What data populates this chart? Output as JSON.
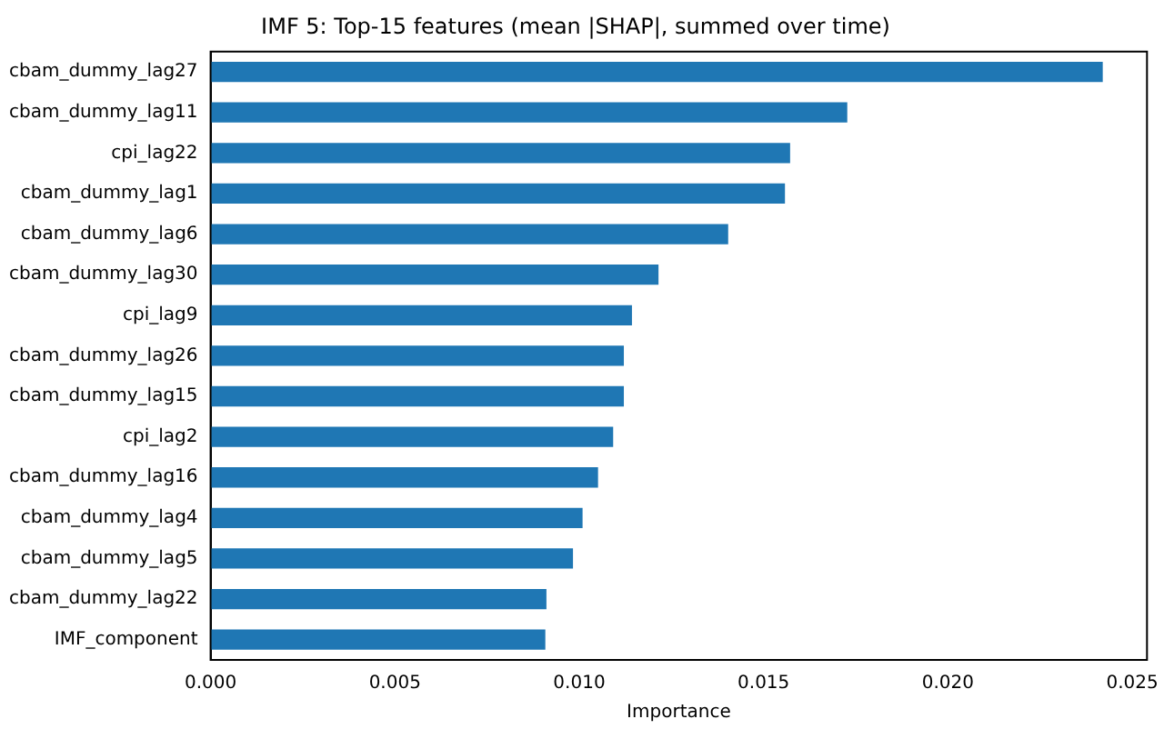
{
  "chart_data": {
    "type": "bar",
    "orientation": "horizontal",
    "title": "IMF 5: Top-15 features (mean |SHAP|, summed over time)",
    "xlabel": "Importance",
    "categories": [
      "cbam_dummy_lag27",
      "cbam_dummy_lag11",
      "cpi_lag22",
      "cbam_dummy_lag1",
      "cbam_dummy_lag6",
      "cbam_dummy_lag30",
      "cpi_lag9",
      "cbam_dummy_lag26",
      "cbam_dummy_lag15",
      "cpi_lag2",
      "cbam_dummy_lag16",
      "cbam_dummy_lag4",
      "cbam_dummy_lag5",
      "cbam_dummy_lag22",
      "IMF_component"
    ],
    "values": [
      0.0242,
      0.01727,
      0.01572,
      0.01558,
      0.01404,
      0.01215,
      0.01143,
      0.01121,
      0.01121,
      0.01092,
      0.01051,
      0.01009,
      0.00983,
      0.00911,
      0.00908
    ],
    "color": "#1f77b4",
    "xlim": [
      0,
      0.0254
    ],
    "xticks": [
      {
        "value": 0,
        "label": "0.000"
      },
      {
        "value": 0.005,
        "label": "0.005"
      },
      {
        "value": 0.01,
        "label": "0.010"
      },
      {
        "value": 0.015,
        "label": "0.015"
      },
      {
        "value": 0.02,
        "label": "0.020"
      },
      {
        "value": 0.025,
        "label": "0.025"
      }
    ],
    "grid": false,
    "legend": false
  }
}
